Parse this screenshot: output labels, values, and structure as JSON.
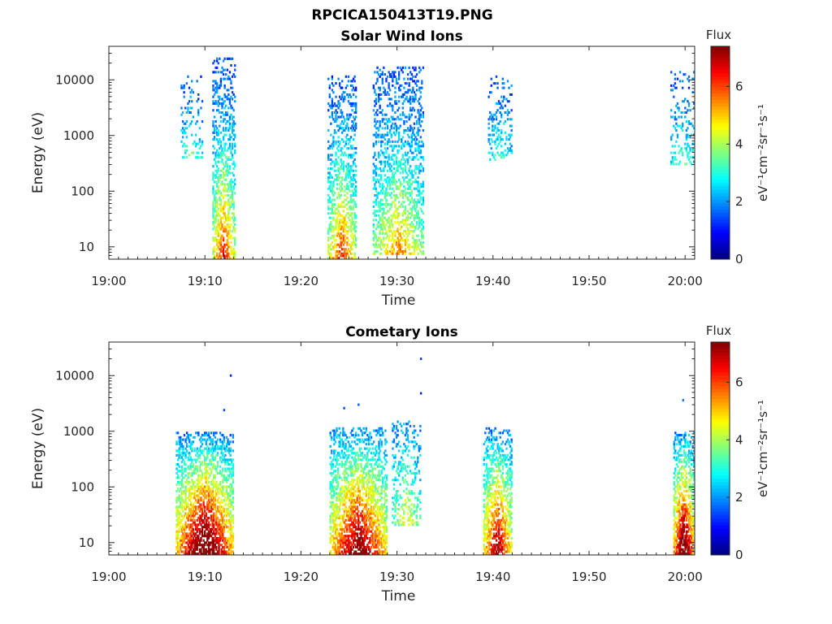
{
  "figure": {
    "filename": "RPCICA150413T19.PNG"
  },
  "colorbar": {
    "title": "Flux",
    "label": "eV⁻¹cm⁻²sr⁻¹s⁻¹",
    "range": [
      0,
      7.4
    ],
    "ticks": [
      "0",
      "2",
      "4",
      "6"
    ],
    "tick_values": [
      0,
      2,
      4,
      6
    ],
    "colormap": "jet"
  },
  "chart_data": [
    {
      "type": "heatmap",
      "title": "Solar Wind Ions",
      "xlabel": "Time",
      "ylabel": "Energy (eV)",
      "x_ticks": [
        "19:00",
        "19:10",
        "19:20",
        "19:30",
        "19:40",
        "19:50",
        "20:00"
      ],
      "x_range_minutes_from_19_00": [
        0,
        61
      ],
      "y_scale": "log",
      "y_ticks": [
        "10",
        "100",
        "1000",
        "10000"
      ],
      "y_tick_values": [
        10,
        100,
        1000,
        10000
      ],
      "y_range": [
        6,
        40000
      ],
      "bursts": [
        {
          "t": [
            7.5,
            9.8
          ],
          "e_min": 400,
          "e_max": 12000,
          "peak": 2.2,
          "density": 0.25
        },
        {
          "t": [
            10.8,
            13.2
          ],
          "e_min": 6,
          "e_max": 26000,
          "peak": 5.2,
          "density": 0.55
        },
        {
          "t": [
            22.8,
            25.8
          ],
          "e_min": 6,
          "e_max": 12000,
          "peak": 5.0,
          "density": 0.5
        },
        {
          "t": [
            27.5,
            32.8
          ],
          "e_min": 7,
          "e_max": 18000,
          "peak": 4.2,
          "density": 0.45
        },
        {
          "t": [
            39.5,
            42.0
          ],
          "e_min": 350,
          "e_max": 12000,
          "peak": 2.0,
          "density": 0.25
        },
        {
          "t": [
            58.5,
            61.0
          ],
          "e_min": 300,
          "e_max": 15000,
          "peak": 2.0,
          "density": 0.25
        }
      ]
    },
    {
      "type": "heatmap",
      "title": "Cometary Ions",
      "xlabel": "Time",
      "ylabel": "Energy (eV)",
      "x_ticks": [
        "19:00",
        "19:10",
        "19:20",
        "19:30",
        "19:40",
        "19:50",
        "20:00"
      ],
      "x_range_minutes_from_19_00": [
        0,
        61
      ],
      "y_scale": "log",
      "y_ticks": [
        "10",
        "100",
        "1000",
        "10000"
      ],
      "y_tick_values": [
        10,
        100,
        1000,
        10000
      ],
      "y_range": [
        6,
        40000
      ],
      "bursts": [
        {
          "t": [
            7.0,
            13.0
          ],
          "e_min": 6,
          "e_max": 1000,
          "peak": 7.3,
          "density": 0.75
        },
        {
          "t": [
            23.0,
            29.0
          ],
          "e_min": 6,
          "e_max": 1200,
          "peak": 6.5,
          "density": 0.7
        },
        {
          "t": [
            29.5,
            32.5
          ],
          "e_min": 20,
          "e_max": 1500,
          "peak": 3.0,
          "density": 0.35
        },
        {
          "t": [
            39.0,
            42.0
          ],
          "e_min": 6,
          "e_max": 1200,
          "peak": 6.0,
          "density": 0.65
        },
        {
          "t": [
            58.8,
            61.0
          ],
          "e_min": 6,
          "e_max": 1000,
          "peak": 7.2,
          "density": 0.7
        }
      ],
      "points": [
        {
          "t": 12.7,
          "e": 10000,
          "v": 1.2
        },
        {
          "t": 12.0,
          "e": 2400,
          "v": 1.5
        },
        {
          "t": 32.5,
          "e": 20000,
          "v": 1.3
        },
        {
          "t": 32.5,
          "e": 4800,
          "v": 1.2
        },
        {
          "t": 24.5,
          "e": 2600,
          "v": 1.5
        },
        {
          "t": 26.0,
          "e": 3000,
          "v": 1.6
        },
        {
          "t": 59.8,
          "e": 3600,
          "v": 1.8
        }
      ]
    }
  ]
}
